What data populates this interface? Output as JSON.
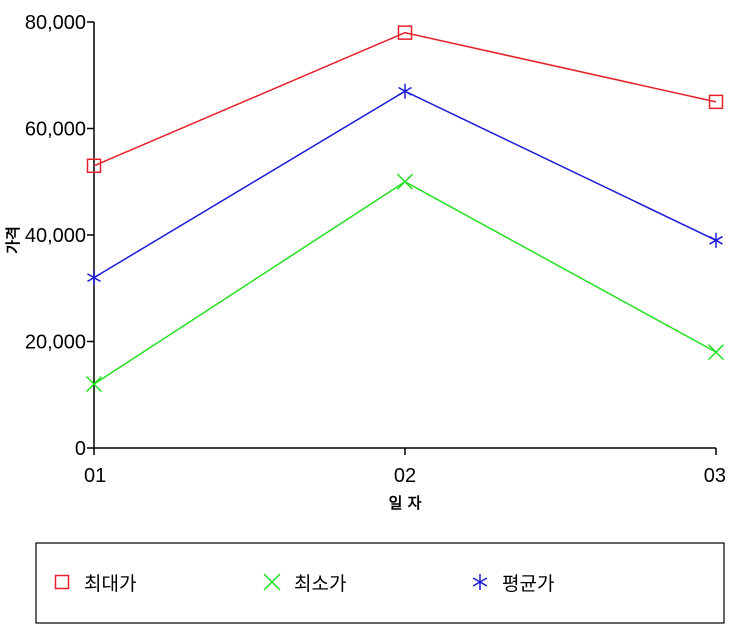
{
  "chart_data": {
    "type": "line",
    "title": "",
    "xlabel": "일 자",
    "ylabel": "가격",
    "categories": [
      "01",
      "02",
      "03"
    ],
    "ylim": [
      0,
      80000
    ],
    "yticks": [
      0,
      20000,
      40000,
      60000,
      80000
    ],
    "ytick_labels": [
      "0",
      "20,000",
      "40,000",
      "60,000",
      "80,000"
    ],
    "grid": false,
    "legend_position": "bottom",
    "series": [
      {
        "name": "최대가",
        "values": [
          53000,
          78000,
          65000
        ],
        "color": "#e8202a",
        "marker": "square"
      },
      {
        "name": "최소가",
        "values": [
          12000,
          50000,
          18000
        ],
        "color": "#22e01e",
        "marker": "x"
      },
      {
        "name": "평균가",
        "values": [
          32000,
          67000,
          39000
        ],
        "color": "#1a1ad6",
        "marker": "asterisk"
      }
    ]
  }
}
